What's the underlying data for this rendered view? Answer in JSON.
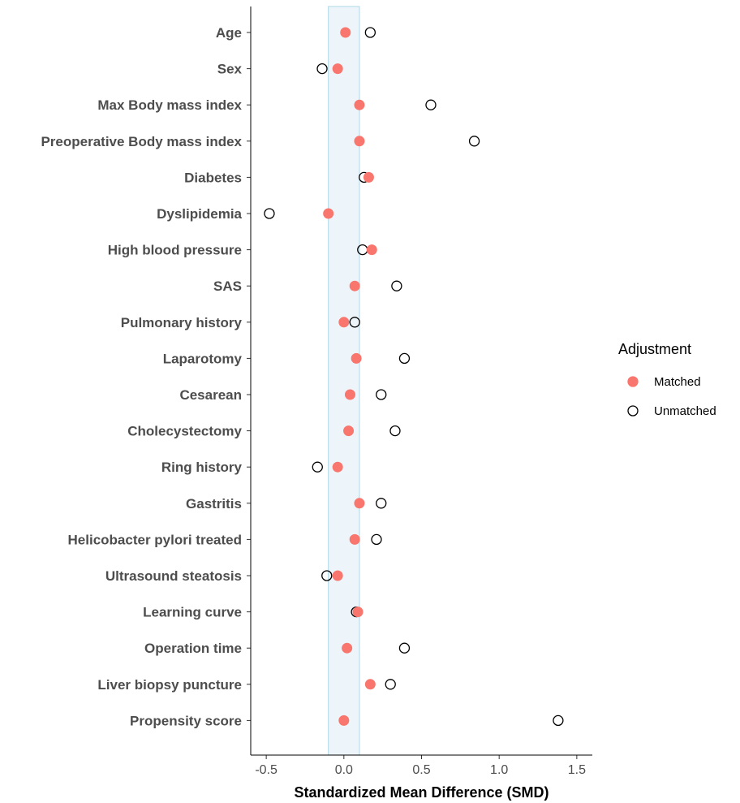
{
  "chart_data": {
    "type": "scatter",
    "title": "",
    "xlabel": "Standardized Mean Difference (SMD)",
    "ylabel": "",
    "xlim": [
      -0.6,
      1.6
    ],
    "xticks": [
      -0.5,
      0.0,
      0.5,
      1.0,
      1.5
    ],
    "xtick_labels": [
      "-0.5",
      "0.0",
      "0.5",
      "1.0",
      "1.5"
    ],
    "grid": false,
    "threshold_band": [
      -0.1,
      0.1
    ],
    "categories": [
      "Age",
      "Sex",
      "Max Body mass index",
      "Preoperative Body mass index",
      "Diabetes",
      "Dyslipidemia",
      "High blood pressure",
      "SAS",
      "Pulmonary history",
      "Laparotomy",
      "Cesarean",
      "Cholecystectomy",
      "Ring history",
      "Gastritis",
      "Helicobacter pylori treated",
      "Ultrasound steatosis",
      "Learning curve",
      "Operation time",
      "Liver biopsy puncture",
      "Propensity score"
    ],
    "series": [
      {
        "name": "Matched",
        "color": "#f8766d",
        "marker": "filled-circle",
        "values": [
          0.01,
          -0.04,
          0.1,
          0.1,
          0.16,
          -0.1,
          0.18,
          0.07,
          0.0,
          0.08,
          0.04,
          0.03,
          -0.04,
          0.1,
          0.07,
          -0.04,
          0.09,
          0.02,
          0.17,
          0.0
        ]
      },
      {
        "name": "Unmatched",
        "color": "#000000",
        "marker": "open-circle",
        "values": [
          0.17,
          -0.14,
          0.56,
          0.84,
          0.13,
          -0.48,
          0.12,
          0.34,
          0.07,
          0.39,
          0.24,
          0.33,
          -0.17,
          0.24,
          0.21,
          -0.11,
          0.08,
          0.39,
          0.3,
          1.38
        ]
      }
    ],
    "legend": {
      "title": "Adjustment",
      "position": "right"
    }
  }
}
